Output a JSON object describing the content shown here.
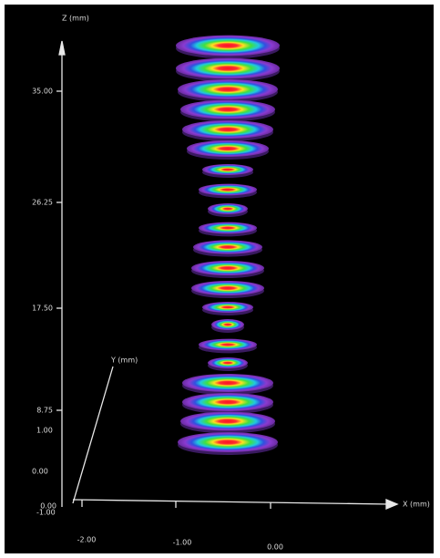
{
  "axes": {
    "z": {
      "label": "Z (mm)",
      "ticks": [
        "35.00",
        "26.25",
        "17.50",
        "8.75",
        "0.00"
      ]
    },
    "y": {
      "label": "Y (mm)",
      "ticks": [
        "1.00",
        "0.00",
        "-1.00"
      ]
    },
    "x": {
      "label": "X (mm)",
      "ticks": [
        "-2.00",
        "-1.00",
        "0.00"
      ]
    }
  }
}
